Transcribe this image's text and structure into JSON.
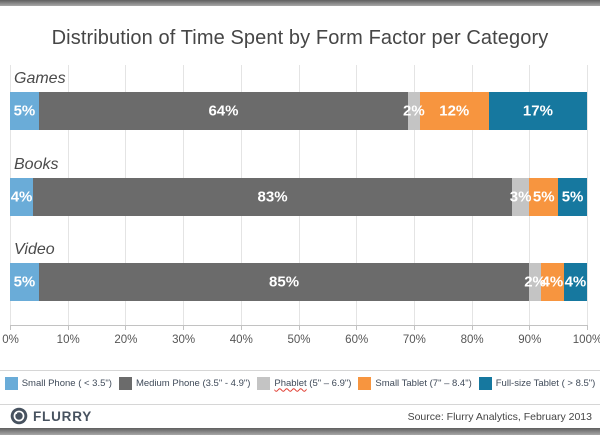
{
  "page": {
    "title": "Distribution of Time Spent by Form Factor per Category"
  },
  "chart_data": {
    "type": "bar",
    "orientation": "horizontal-stacked",
    "title": "Distribution of Time Spent by Form Factor per Category",
    "categories": [
      "Games",
      "Books",
      "Video"
    ],
    "series": [
      {
        "name": "Small Phone ( < 3.5\")",
        "color": "#6AACD8",
        "values": [
          5,
          4,
          5
        ]
      },
      {
        "name": "Medium Phone (3.5\" - 4.9\")",
        "color": "#6B6B6B",
        "values": [
          64,
          83,
          85
        ]
      },
      {
        "name": "Phablet (5\" – 6.9\")",
        "color": "#C4C4C4",
        "values": [
          2,
          3,
          2
        ]
      },
      {
        "name": "Small Tablet (7\" – 8.4\")",
        "color": "#F7953F",
        "values": [
          12,
          5,
          4
        ]
      },
      {
        "name": "Full-size Tablet ( > 8.5\")",
        "color": "#16789F",
        "values": [
          17,
          5,
          4
        ]
      }
    ],
    "value_suffix": "%",
    "x_axis": {
      "range": [
        0,
        100
      ],
      "ticks": [
        "0%",
        "10%",
        "20%",
        "30%",
        "40%",
        "50%",
        "60%",
        "70%",
        "80%",
        "90%",
        "100%"
      ],
      "grid": true
    },
    "legend_position": "bottom"
  },
  "legend": {
    "items": [
      {
        "label": "Small Phone ( < 3.5\")",
        "color": "#6AACD8"
      },
      {
        "label": "Medium Phone (3.5\" - 4.9\")",
        "color": "#6B6B6B"
      },
      {
        "word": "Phablet",
        "rest": " (5\" – 6.9\")",
        "color": "#C4C4C4"
      },
      {
        "label": "Small Tablet (7\" – 8.4\")",
        "color": "#F7953F"
      },
      {
        "label": "Full-size Tablet ( > 8.5\")",
        "color": "#16789F"
      }
    ]
  },
  "footer": {
    "brand": "FLURRY",
    "source": "Source: Flurry Analytics, February 2013"
  }
}
